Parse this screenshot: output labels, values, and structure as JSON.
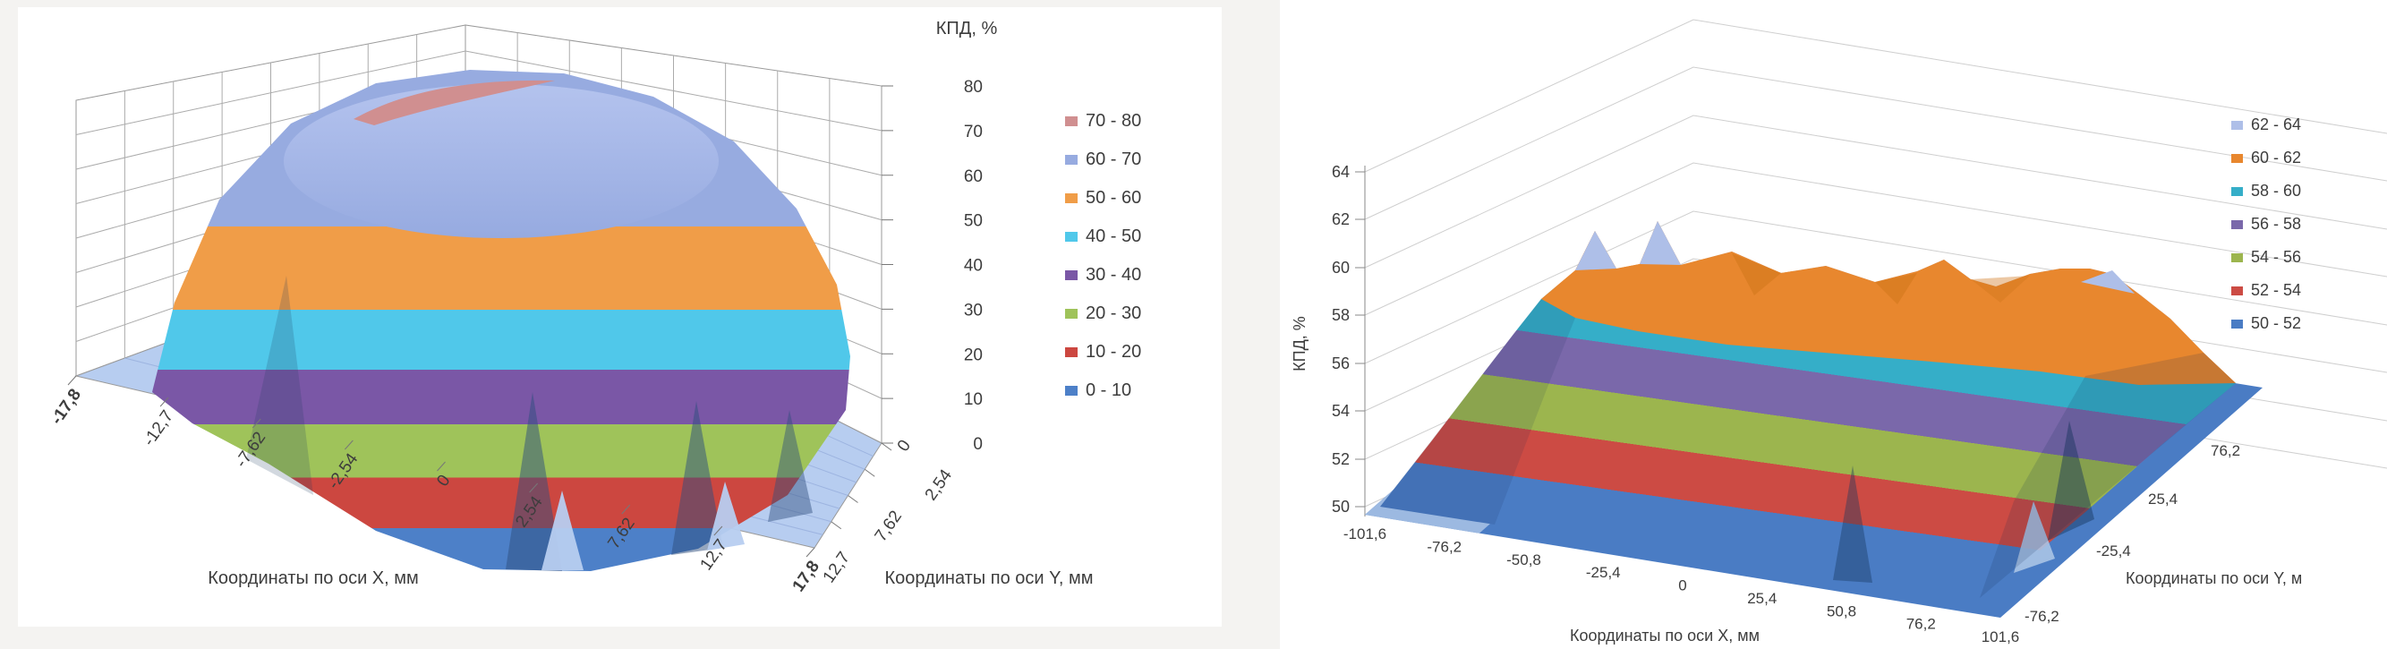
{
  "page": {
    "background_color": "#f4f3f1",
    "panel_color": "#ffffff"
  },
  "chart_data": [
    {
      "type": "surface",
      "panel": "left",
      "z_axis_title": "КПД, %",
      "x_axis_title": "Координаты по оси X, мм",
      "y_axis_title": "Координаты по оси Y, мм",
      "x_ticks": [
        "-17,8",
        "-12,7",
        "-7,62",
        "-2,54",
        "0",
        "2,54",
        "7,62",
        "12,7",
        "17,8"
      ],
      "y_ticks": [
        "12,7",
        "7,62",
        "2,54",
        "0"
      ],
      "z_ticks": [
        "80",
        "70",
        "60",
        "50",
        "40",
        "30",
        "20",
        "10",
        "0"
      ],
      "z_range": [
        0,
        80
      ],
      "grid": true,
      "legend_position": "right",
      "surface_shape": "dome",
      "bands": [
        {
          "label": "70 - 80",
          "color": "#d08f90"
        },
        {
          "label": "60 - 70",
          "color": "#97abe0"
        },
        {
          "label": "50 - 60",
          "color": "#f09d48"
        },
        {
          "label": "40 - 50",
          "color": "#50c8ea"
        },
        {
          "label": "30 - 40",
          "color": "#7a57a6"
        },
        {
          "label": "20 - 30",
          "color": "#9fc35a"
        },
        {
          "label": "10 - 20",
          "color": "#cc4740"
        },
        {
          "label": "0 - 10",
          "color": "#4d80c8"
        }
      ],
      "approx_center_profile": {
        "x": [
          -17.8,
          -12.7,
          -7.62,
          -2.54,
          0,
          2.54,
          7.62,
          12.7,
          17.8
        ],
        "z": [
          0,
          12,
          45,
          68,
          72,
          71,
          62,
          35,
          0
        ]
      }
    },
    {
      "type": "surface",
      "panel": "right",
      "z_axis_title": "КПД, %",
      "x_axis_title": "Координаты по оси X, мм",
      "y_axis_title": "Координаты по оси Y, м",
      "x_ticks": [
        "-101,6",
        "-76,2",
        "-50,8",
        "-25,4",
        "0",
        "25,4",
        "50,8",
        "76,2",
        "101,6"
      ],
      "y_ticks": [
        "-76,2",
        "-25,4",
        "25,4",
        "76,2"
      ],
      "z_ticks": [
        "64",
        "62",
        "60",
        "58",
        "56",
        "54",
        "52",
        "50"
      ],
      "z_range": [
        50,
        64
      ],
      "grid": true,
      "legend_position": "right",
      "surface_shape": "plateau",
      "bands": [
        {
          "label": "62 - 64",
          "color": "#aebfe8"
        },
        {
          "label": "60 - 62",
          "color": "#e8872e"
        },
        {
          "label": "58 - 60",
          "color": "#35aec8"
        },
        {
          "label": "56 - 58",
          "color": "#7a68aa"
        },
        {
          "label": "54 - 56",
          "color": "#9cb54e"
        },
        {
          "label": "52 - 54",
          "color": "#cc4b44"
        },
        {
          "label": "50 - 52",
          "color": "#4a7cc4"
        }
      ],
      "approx_center_profile": {
        "x": [
          -101.6,
          -76.2,
          -50.8,
          -25.4,
          0,
          25.4,
          50.8,
          76.2,
          101.6
        ],
        "z": [
          50,
          53,
          60,
          62,
          62.5,
          62,
          61,
          56,
          50
        ]
      }
    }
  ]
}
